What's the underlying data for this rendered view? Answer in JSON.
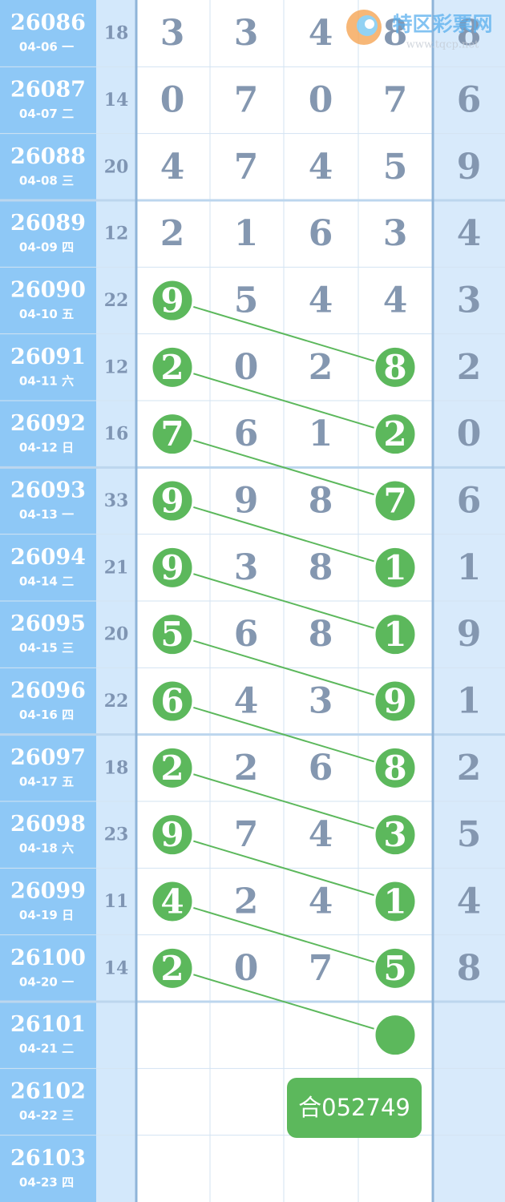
{
  "logo": {
    "name": "特区彩票网",
    "url": "www.tqcp.net"
  },
  "badge": "合052749",
  "rows": [
    {
      "issue": "26086",
      "date": "04-06 一",
      "sum": "18",
      "digits": [
        "3",
        "3",
        "4",
        "8"
      ],
      "last": "8"
    },
    {
      "issue": "26087",
      "date": "04-07 二",
      "sum": "14",
      "digits": [
        "0",
        "7",
        "0",
        "7"
      ],
      "last": "6"
    },
    {
      "issue": "26088",
      "date": "04-08 三",
      "sum": "20",
      "digits": [
        "4",
        "7",
        "4",
        "5"
      ],
      "last": "9"
    },
    {
      "issue": "26089",
      "date": "04-09 四",
      "sum": "12",
      "digits": [
        "2",
        "1",
        "6",
        "3"
      ],
      "last": "4"
    },
    {
      "issue": "26090",
      "date": "04-10 五",
      "sum": "22",
      "digits": [
        "9",
        "5",
        "4",
        "4"
      ],
      "last": "3"
    },
    {
      "issue": "26091",
      "date": "04-11 六",
      "sum": "12",
      "digits": [
        "2",
        "0",
        "2",
        "8"
      ],
      "last": "2"
    },
    {
      "issue": "26092",
      "date": "04-12 日",
      "sum": "16",
      "digits": [
        "7",
        "6",
        "1",
        "2"
      ],
      "last": "0"
    },
    {
      "issue": "26093",
      "date": "04-13 一",
      "sum": "33",
      "digits": [
        "9",
        "9",
        "8",
        "7"
      ],
      "last": "6"
    },
    {
      "issue": "26094",
      "date": "04-14 二",
      "sum": "21",
      "digits": [
        "9",
        "3",
        "8",
        "1"
      ],
      "last": "1"
    },
    {
      "issue": "26095",
      "date": "04-15 三",
      "sum": "20",
      "digits": [
        "5",
        "6",
        "8",
        "1"
      ],
      "last": "9"
    },
    {
      "issue": "26096",
      "date": "04-16 四",
      "sum": "22",
      "digits": [
        "6",
        "4",
        "3",
        "9"
      ],
      "last": "1"
    },
    {
      "issue": "26097",
      "date": "04-17 五",
      "sum": "18",
      "digits": [
        "2",
        "2",
        "6",
        "8"
      ],
      "last": "2"
    },
    {
      "issue": "26098",
      "date": "04-18 六",
      "sum": "23",
      "digits": [
        "9",
        "7",
        "4",
        "3"
      ],
      "last": "5"
    },
    {
      "issue": "26099",
      "date": "04-19 日",
      "sum": "11",
      "digits": [
        "4",
        "2",
        "4",
        "1"
      ],
      "last": "4"
    },
    {
      "issue": "26100",
      "date": "04-20 一",
      "sum": "14",
      "digits": [
        "2",
        "0",
        "7",
        "5"
      ],
      "last": "8"
    },
    {
      "issue": "26101",
      "date": "04-21 二"
    },
    {
      "issue": "26102",
      "date": "04-22 三"
    },
    {
      "issue": "26103",
      "date": "04-23 四"
    }
  ]
}
